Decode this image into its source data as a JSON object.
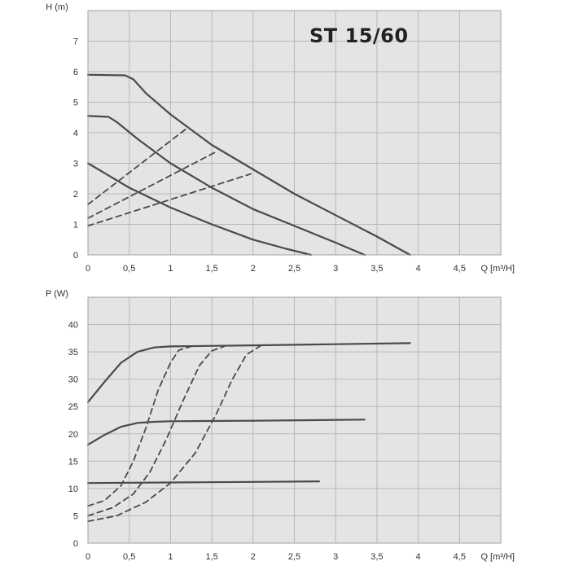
{
  "title": "ST 15/60",
  "chart_data": [
    {
      "type": "line",
      "ylabel": "H (m)",
      "xlabel": "Q [m³/H]",
      "xlim": [
        0,
        5
      ],
      "ylim": [
        0,
        8
      ],
      "xticks": [
        0,
        0.5,
        1,
        1.5,
        2,
        2.5,
        3,
        3.5,
        4,
        4.5
      ],
      "xtick_labels": [
        "0",
        "0,5",
        "1",
        "1,5",
        "2",
        "2,5",
        "3",
        "3,5",
        "4",
        "4,5"
      ],
      "yticks": [
        0,
        1,
        2,
        3,
        4,
        5,
        6,
        7
      ],
      "ytick_labels": [
        "0",
        "1",
        "2",
        "3",
        "4",
        "5",
        "6",
        "7"
      ],
      "grid": true,
      "series": [
        {
          "style": "solid",
          "x": [
            0,
            0.45,
            0.55,
            0.7,
            1.0,
            1.5,
            2.0,
            2.5,
            3.0,
            3.5,
            3.9
          ],
          "y": [
            5.9,
            5.88,
            5.75,
            5.3,
            4.6,
            3.6,
            2.8,
            2.0,
            1.3,
            0.6,
            0.0
          ]
        },
        {
          "style": "solid",
          "x": [
            0,
            0.25,
            0.35,
            0.6,
            1.0,
            1.5,
            2.0,
            2.5,
            3.0,
            3.35
          ],
          "y": [
            4.55,
            4.52,
            4.35,
            3.8,
            3.0,
            2.2,
            1.5,
            0.95,
            0.4,
            0.0
          ]
        },
        {
          "style": "solid",
          "x": [
            0,
            0.5,
            1.0,
            1.5,
            2.0,
            2.4,
            2.7
          ],
          "y": [
            3.0,
            2.2,
            1.55,
            1.0,
            0.5,
            0.2,
            0.0
          ]
        },
        {
          "style": "dashed",
          "x": [
            0,
            1.2
          ],
          "y": [
            1.65,
            4.15
          ]
        },
        {
          "style": "dashed",
          "x": [
            0,
            1.57
          ],
          "y": [
            1.2,
            3.4
          ]
        },
        {
          "style": "dashed",
          "x": [
            0,
            1.97
          ],
          "y": [
            0.95,
            2.65
          ]
        }
      ]
    },
    {
      "type": "line",
      "ylabel": "P (W)",
      "xlabel": "Q [m³/H]",
      "xlim": [
        0,
        5
      ],
      "ylim": [
        0,
        45
      ],
      "xticks": [
        0,
        0.5,
        1,
        1.5,
        2,
        2.5,
        3,
        3.5,
        4,
        4.5
      ],
      "xtick_labels": [
        "0",
        "0,5",
        "1",
        "1,5",
        "2",
        "2,5",
        "3",
        "3,5",
        "4",
        "4,5"
      ],
      "yticks": [
        0,
        5,
        10,
        15,
        20,
        25,
        30,
        35,
        40
      ],
      "ytick_labels": [
        "0",
        "5",
        "10",
        "15",
        "20",
        "25",
        "30",
        "35",
        "40"
      ],
      "grid": true,
      "series": [
        {
          "style": "solid",
          "x": [
            0,
            0.2,
            0.4,
            0.6,
            0.8,
            1.0,
            2.0,
            3.0,
            3.9
          ],
          "y": [
            25.8,
            29.5,
            33.0,
            35.0,
            35.8,
            36.0,
            36.2,
            36.4,
            36.6
          ]
        },
        {
          "style": "solid",
          "x": [
            0,
            0.2,
            0.4,
            0.6,
            0.8,
            1.0,
            2.0,
            3.35
          ],
          "y": [
            18.0,
            19.8,
            21.3,
            22.0,
            22.2,
            22.3,
            22.4,
            22.6
          ]
        },
        {
          "style": "solid",
          "x": [
            0,
            1.0,
            2.0,
            2.8
          ],
          "y": [
            11.0,
            11.1,
            11.2,
            11.3
          ]
        },
        {
          "style": "dashed",
          "x": [
            0,
            0.2,
            0.4,
            0.55,
            0.7,
            0.85,
            1.0,
            1.1,
            1.25
          ],
          "y": [
            6.8,
            7.8,
            10.5,
            15.0,
            21.0,
            28.0,
            33.0,
            35.3,
            36.0
          ]
        },
        {
          "style": "dashed",
          "x": [
            0,
            0.3,
            0.55,
            0.75,
            0.95,
            1.15,
            1.35,
            1.5,
            1.65
          ],
          "y": [
            5.0,
            6.5,
            9.0,
            13.0,
            19.0,
            26.0,
            32.5,
            35.2,
            36.0
          ]
        },
        {
          "style": "dashed",
          "x": [
            0,
            0.35,
            0.7,
            1.0,
            1.3,
            1.55,
            1.75,
            1.92,
            2.1
          ],
          "y": [
            4.0,
            5.0,
            7.5,
            11.0,
            16.5,
            23.5,
            30.0,
            34.5,
            36.2
          ]
        }
      ]
    }
  ]
}
